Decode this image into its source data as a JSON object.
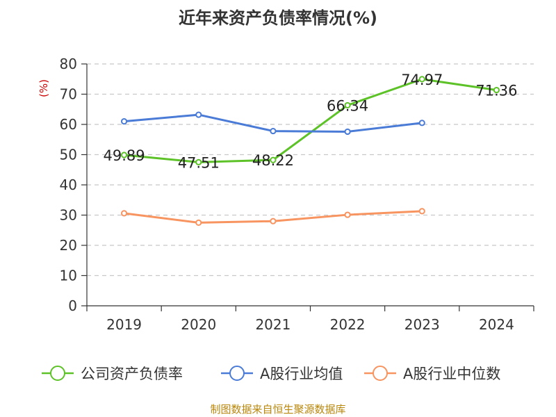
{
  "title": "近年来资产负债率情况(%)",
  "source": "制图数据来自恒生聚源数据库",
  "colors": {
    "company": "#5dc228",
    "industry_avg": "#4a7bd6",
    "industry_median": "#f79460",
    "grid": "#c8c8c8",
    "axis": "#333333",
    "source_text": "#b8860b"
  },
  "chart_data": {
    "type": "line",
    "categories": [
      "2019",
      "2020",
      "2021",
      "2022",
      "2023",
      "2024"
    ],
    "ylabel": "(%)",
    "ylim": [
      0,
      80
    ],
    "yticks": [
      0,
      10,
      20,
      30,
      40,
      50,
      60,
      70,
      80
    ],
    "grid": true,
    "legend_position": "bottom",
    "series": [
      {
        "key": "company",
        "name": "公司资产负债率",
        "values": [
          49.89,
          47.51,
          48.22,
          66.34,
          74.97,
          71.36
        ],
        "labels": [
          "49.89",
          "47.51",
          "48.22",
          "66.34",
          "74.97",
          "71.36"
        ]
      },
      {
        "key": "industry_avg",
        "name": "A股行业均值",
        "values": [
          61.0,
          63.2,
          57.8,
          57.6,
          60.5,
          null
        ]
      },
      {
        "key": "industry_median",
        "name": "A股行业中位数",
        "values": [
          30.6,
          27.5,
          28.0,
          30.1,
          31.3,
          null
        ]
      }
    ]
  }
}
